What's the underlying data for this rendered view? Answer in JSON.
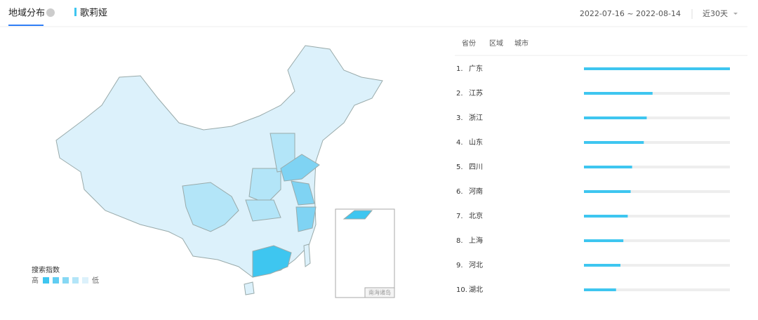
{
  "header": {
    "active_tab": "地域分布",
    "keyword": "歌莉娅",
    "date_range": "2022-07-16 ~ 2022-08-14",
    "period": "近30天"
  },
  "ranking": {
    "tabs": [
      "省份",
      "区域",
      "城市"
    ],
    "items": [
      {
        "rank": "1.",
        "name": "广东",
        "value": 100
      },
      {
        "rank": "2.",
        "name": "江苏",
        "value": 47
      },
      {
        "rank": "3.",
        "name": "浙江",
        "value": 43
      },
      {
        "rank": "4.",
        "name": "山东",
        "value": 41
      },
      {
        "rank": "5.",
        "name": "四川",
        "value": 33
      },
      {
        "rank": "6.",
        "name": "河南",
        "value": 32
      },
      {
        "rank": "7.",
        "name": "北京",
        "value": 30
      },
      {
        "rank": "8.",
        "name": "上海",
        "value": 27
      },
      {
        "rank": "9.",
        "name": "河北",
        "value": 25
      },
      {
        "rank": "10.",
        "name": "湖北",
        "value": 22
      }
    ]
  },
  "legend": {
    "title": "搜索指数",
    "high": "高",
    "low": "低"
  },
  "inset_label": "南海诸岛"
}
